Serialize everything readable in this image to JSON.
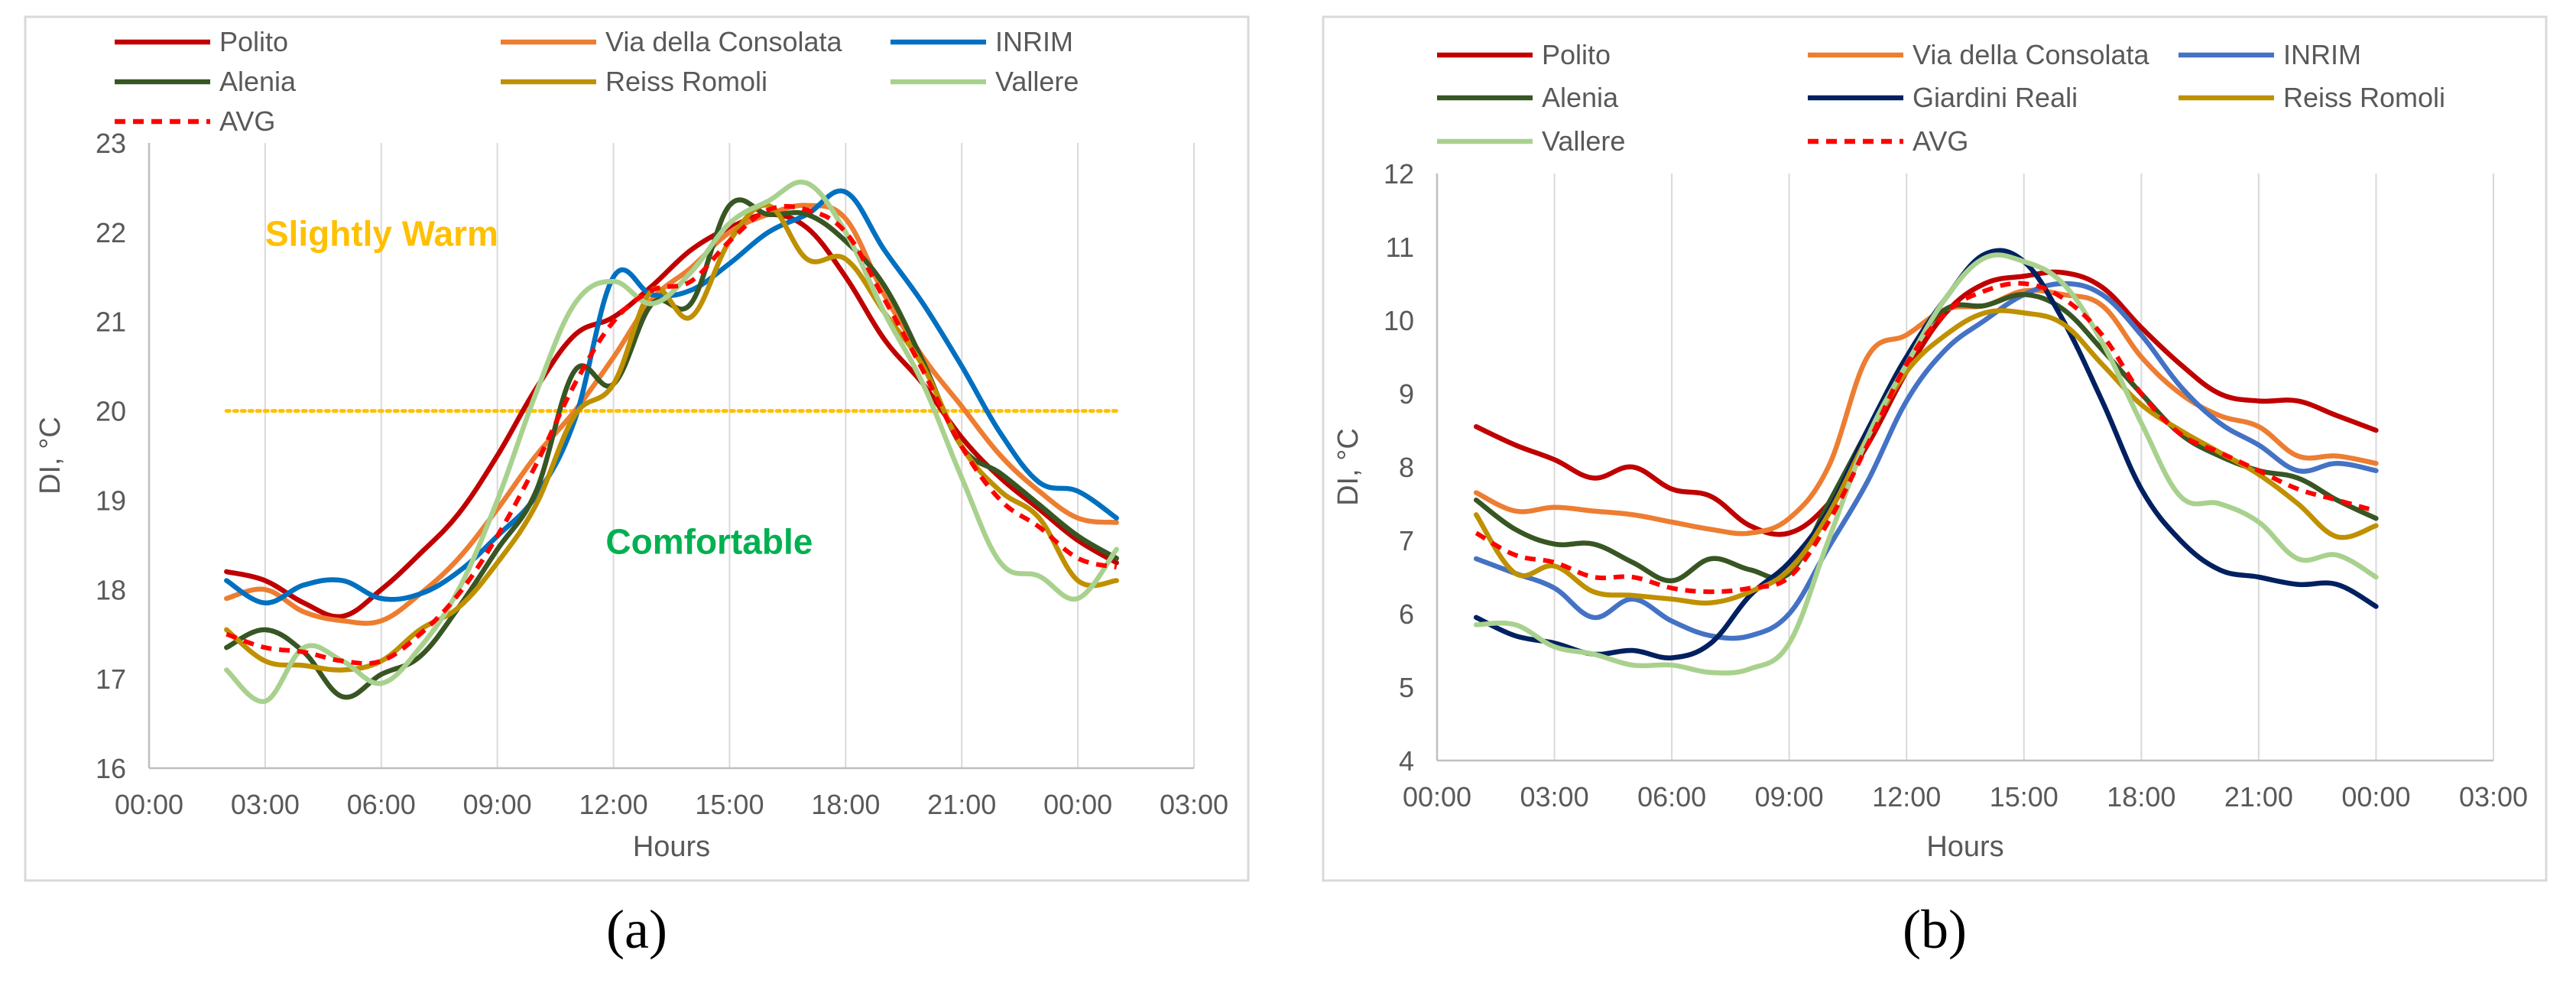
{
  "figure": {
    "label_a": "(a)",
    "label_b": "(b)"
  },
  "chart_data": [
    {
      "type": "line",
      "panel": "a",
      "title": "",
      "xlabel": "Hours",
      "ylabel": "DI, °C",
      "xlim": [
        0,
        27
      ],
      "ylim": [
        16,
        23
      ],
      "x_ticks": [
        0,
        3,
        6,
        9,
        12,
        15,
        18,
        21,
        24,
        27
      ],
      "x_tick_labels": [
        "00:00",
        "03:00",
        "06:00",
        "09:00",
        "12:00",
        "15:00",
        "18:00",
        "21:00",
        "00:00",
        "03:00"
      ],
      "y_ticks": [
        16,
        17,
        18,
        19,
        20,
        21,
        22,
        23
      ],
      "y_tick_labels": [
        "16",
        "17",
        "18",
        "19",
        "20",
        "21",
        "22",
        "23"
      ],
      "grid": "vertical",
      "legend_position": "top",
      "annotations": [
        {
          "text": "Slightly Warm",
          "x": 3,
          "y": 21.85,
          "color": "#ffc000"
        },
        {
          "text": "Comfortable",
          "x": 11.8,
          "y": 18.4,
          "color": "#00b050"
        }
      ],
      "threshold": {
        "y": 20,
        "x_range": [
          2,
          25
        ],
        "color": "#ffc000"
      },
      "series": [
        {
          "name": "Polito",
          "color": "#c00000",
          "dash": false,
          "legend_col": 0,
          "legend_row": 0,
          "x": [
            2,
            3,
            4,
            5,
            6,
            7,
            8,
            9,
            10,
            11,
            12,
            13,
            14,
            15,
            16,
            17,
            18,
            19,
            20,
            21,
            22,
            23,
            24,
            25
          ],
          "y": [
            18.2,
            18.1,
            17.85,
            17.7,
            18.0,
            18.4,
            18.85,
            19.5,
            20.25,
            20.85,
            21.05,
            21.4,
            21.8,
            22.05,
            22.2,
            22.05,
            21.5,
            20.8,
            20.3,
            19.7,
            19.25,
            18.9,
            18.55,
            18.3
          ]
        },
        {
          "name": "Via della Consolata",
          "color": "#ed7d31",
          "dash": false,
          "legend_col": 1,
          "legend_row": 0,
          "x": [
            2,
            3,
            4,
            5,
            6,
            7,
            8,
            9,
            10,
            11,
            12,
            13,
            14,
            15,
            16,
            17,
            18,
            19,
            20,
            21,
            22,
            23,
            24,
            25
          ],
          "y": [
            17.9,
            18.0,
            17.75,
            17.65,
            17.65,
            17.95,
            18.35,
            18.9,
            19.5,
            20.0,
            20.6,
            21.25,
            21.6,
            22.0,
            22.2,
            22.3,
            22.15,
            21.3,
            20.6,
            20.05,
            19.5,
            19.1,
            18.8,
            18.75
          ]
        },
        {
          "name": "INRIM",
          "color": "#0070c0",
          "dash": false,
          "legend_col": 2,
          "legend_row": 0,
          "x": [
            2,
            3,
            4,
            5,
            6,
            7,
            8,
            9,
            10,
            11,
            12,
            13,
            14,
            15,
            16,
            17,
            18,
            19,
            20,
            21,
            22,
            23,
            24,
            25
          ],
          "y": [
            18.1,
            17.85,
            18.05,
            18.1,
            17.9,
            17.95,
            18.2,
            18.6,
            19.05,
            19.9,
            21.5,
            21.3,
            21.35,
            21.65,
            22.0,
            22.2,
            22.45,
            21.8,
            21.2,
            20.5,
            19.75,
            19.2,
            19.1,
            18.8
          ]
        },
        {
          "name": "Alenia",
          "color": "#375623",
          "dash": false,
          "legend_col": 0,
          "legend_row": 1,
          "x": [
            2,
            3,
            4,
            5,
            6,
            7,
            8,
            9,
            10,
            11,
            12,
            13,
            14,
            15,
            16,
            17,
            18,
            19,
            20,
            21,
            22,
            23,
            24,
            25
          ],
          "y": [
            17.35,
            17.55,
            17.3,
            16.8,
            17.05,
            17.25,
            17.8,
            18.45,
            19.1,
            20.45,
            20.3,
            21.2,
            21.2,
            22.3,
            22.2,
            22.2,
            21.9,
            21.4,
            20.55,
            19.6,
            19.3,
            18.95,
            18.6,
            18.35
          ]
        },
        {
          "name": "Reiss Romoli",
          "color": "#bf9000",
          "dash": false,
          "legend_col": 1,
          "legend_row": 1,
          "x": [
            2,
            3,
            4,
            5,
            6,
            7,
            8,
            9,
            10,
            11,
            12,
            13,
            14,
            15,
            16,
            17,
            18,
            19,
            20,
            21,
            22,
            23,
            24,
            25
          ],
          "y": [
            17.55,
            17.2,
            17.15,
            17.1,
            17.2,
            17.55,
            17.8,
            18.3,
            18.95,
            19.95,
            20.3,
            21.35,
            21.05,
            21.9,
            22.3,
            21.7,
            21.7,
            21.1,
            20.5,
            19.6,
            19.1,
            18.8,
            18.1,
            18.1
          ]
        },
        {
          "name": "Vallere",
          "color": "#a9d18e",
          "dash": false,
          "legend_col": 2,
          "legend_row": 1,
          "x": [
            2,
            3,
            4,
            5,
            6,
            7,
            8,
            9,
            10,
            11,
            12,
            13,
            14,
            15,
            16,
            17,
            18,
            19,
            20,
            21,
            22,
            23,
            24,
            25
          ],
          "y": [
            17.1,
            16.75,
            17.35,
            17.2,
            16.95,
            17.35,
            18.0,
            19.0,
            20.2,
            21.2,
            21.45,
            21.2,
            21.55,
            22.1,
            22.35,
            22.55,
            22.0,
            21.1,
            20.3,
            19.25,
            18.3,
            18.15,
            17.9,
            18.45
          ]
        },
        {
          "name": "AVG",
          "color": "#ff0000",
          "dash": true,
          "legend_col": 0,
          "legend_row": 2,
          "x": [
            2,
            3,
            4,
            5,
            6,
            7,
            8,
            9,
            10,
            11,
            12,
            13,
            14,
            15,
            16,
            17,
            18,
            19,
            20,
            21,
            22,
            23,
            24,
            25
          ],
          "y": [
            17.5,
            17.35,
            17.3,
            17.2,
            17.2,
            17.5,
            17.95,
            18.6,
            19.4,
            20.3,
            21.0,
            21.35,
            21.45,
            21.9,
            22.25,
            22.25,
            22.0,
            21.25,
            20.45,
            19.6,
            19.0,
            18.7,
            18.35,
            18.25
          ]
        }
      ]
    },
    {
      "type": "line",
      "panel": "b",
      "title": "",
      "xlabel": "Hours",
      "ylabel": "DI, °C",
      "xlim": [
        0,
        27
      ],
      "ylim": [
        4,
        12
      ],
      "x_ticks": [
        0,
        3,
        6,
        9,
        12,
        15,
        18,
        21,
        24,
        27
      ],
      "x_tick_labels": [
        "00:00",
        "03:00",
        "06:00",
        "09:00",
        "12:00",
        "15:00",
        "18:00",
        "21:00",
        "00:00",
        "03:00"
      ],
      "y_ticks": [
        4,
        5,
        6,
        7,
        8,
        9,
        10,
        11,
        12
      ],
      "y_tick_labels": [
        "4",
        "5",
        "6",
        "7",
        "8",
        "9",
        "10",
        "11",
        "12"
      ],
      "grid": "vertical",
      "legend_position": "top",
      "series": [
        {
          "name": "Polito",
          "color": "#c00000",
          "dash": false,
          "legend_col": 0,
          "legend_row": 0,
          "x": [
            1,
            2,
            3,
            4,
            5,
            6,
            7,
            8,
            9,
            10,
            11,
            12,
            13,
            14,
            15,
            16,
            17,
            18,
            19,
            20,
            21,
            22,
            23,
            24
          ],
          "y": [
            8.55,
            8.3,
            8.1,
            7.85,
            8.0,
            7.7,
            7.6,
            7.2,
            7.1,
            7.5,
            8.3,
            9.3,
            10.1,
            10.5,
            10.6,
            10.65,
            10.45,
            9.9,
            9.4,
            9.0,
            8.9,
            8.9,
            8.7,
            8.5
          ]
        },
        {
          "name": "Via della Consolata",
          "color": "#ed7d31",
          "dash": false,
          "legend_col": 1,
          "legend_row": 0,
          "x": [
            1,
            2,
            3,
            4,
            5,
            6,
            7,
            8,
            9,
            10,
            11,
            12,
            13,
            14,
            15,
            16,
            17,
            18,
            19,
            20,
            21,
            22,
            23,
            24
          ],
          "y": [
            7.65,
            7.4,
            7.45,
            7.4,
            7.35,
            7.25,
            7.15,
            7.1,
            7.3,
            8.0,
            9.5,
            9.8,
            10.15,
            10.2,
            10.4,
            10.35,
            10.2,
            9.5,
            9.0,
            8.7,
            8.55,
            8.15,
            8.15,
            8.05
          ]
        },
        {
          "name": "INRIM",
          "color": "#4472c4",
          "dash": false,
          "legend_col": 2,
          "legend_row": 0,
          "x": [
            1,
            2,
            3,
            4,
            5,
            6,
            7,
            8,
            9,
            10,
            11,
            12,
            13,
            14,
            15,
            16,
            17,
            18,
            19,
            20,
            21,
            22,
            23,
            24
          ],
          "y": [
            6.75,
            6.55,
            6.35,
            5.95,
            6.2,
            5.9,
            5.7,
            5.7,
            6.0,
            6.9,
            7.8,
            8.9,
            9.6,
            10.0,
            10.35,
            10.5,
            10.35,
            9.8,
            9.1,
            8.6,
            8.3,
            7.95,
            8.05,
            7.95
          ]
        },
        {
          "name": "Alenia",
          "color": "#375623",
          "dash": false,
          "legend_col": 0,
          "legend_row": 1,
          "x": [
            1,
            2,
            3,
            4,
            5,
            6,
            7,
            8,
            9,
            10,
            11,
            12,
            13,
            14,
            15,
            16,
            17,
            18,
            19,
            20,
            21,
            22,
            23,
            24
          ],
          "y": [
            7.55,
            7.15,
            6.95,
            6.95,
            6.7,
            6.45,
            6.75,
            6.6,
            6.55,
            7.5,
            8.5,
            9.5,
            10.15,
            10.2,
            10.35,
            10.15,
            9.6,
            9.0,
            8.45,
            8.15,
            7.95,
            7.85,
            7.55,
            7.3
          ]
        },
        {
          "name": "Giardini Reali",
          "color": "#002060",
          "dash": false,
          "legend_col": 1,
          "legend_row": 1,
          "x": [
            1,
            2,
            3,
            4,
            5,
            6,
            7,
            8,
            9,
            10,
            11,
            12,
            13,
            14,
            15,
            16,
            17,
            18,
            19,
            20,
            21,
            22,
            23,
            24
          ],
          "y": [
            5.95,
            5.7,
            5.6,
            5.45,
            5.5,
            5.4,
            5.6,
            6.25,
            6.7,
            7.4,
            8.5,
            9.5,
            10.3,
            10.9,
            10.8,
            10.0,
            8.9,
            7.7,
            7.0,
            6.6,
            6.5,
            6.4,
            6.4,
            6.1
          ]
        },
        {
          "name": "Reiss Romoli",
          "color": "#bf9000",
          "dash": false,
          "legend_col": 2,
          "legend_row": 1,
          "x": [
            1,
            2,
            3,
            4,
            5,
            6,
            7,
            8,
            9,
            10,
            11,
            12,
            13,
            14,
            15,
            16,
            17,
            18,
            19,
            20,
            21,
            22,
            23,
            24
          ],
          "y": [
            7.35,
            6.55,
            6.65,
            6.3,
            6.25,
            6.2,
            6.15,
            6.3,
            6.6,
            7.35,
            8.4,
            9.3,
            9.8,
            10.1,
            10.1,
            9.95,
            9.4,
            8.85,
            8.5,
            8.2,
            7.9,
            7.5,
            7.05,
            7.2
          ]
        },
        {
          "name": "Vallere",
          "color": "#a9d18e",
          "dash": false,
          "legend_col": 0,
          "legend_row": 2,
          "x": [
            1,
            2,
            3,
            4,
            5,
            6,
            7,
            8,
            9,
            10,
            11,
            12,
            13,
            14,
            15,
            16,
            17,
            18,
            19,
            20,
            21,
            22,
            23,
            24
          ],
          "y": [
            5.85,
            5.85,
            5.55,
            5.45,
            5.3,
            5.3,
            5.2,
            5.25,
            5.6,
            7.0,
            8.4,
            9.4,
            10.3,
            10.85,
            10.8,
            10.5,
            9.7,
            8.6,
            7.6,
            7.5,
            7.25,
            6.75,
            6.8,
            6.5
          ]
        },
        {
          "name": "AVG",
          "color": "#ff0000",
          "dash": true,
          "legend_col": 1,
          "legend_row": 2,
          "x": [
            1,
            2,
            3,
            4,
            5,
            6,
            7,
            8,
            9,
            10,
            11,
            12,
            13,
            14,
            15,
            16,
            17,
            18,
            19,
            20,
            21,
            22,
            23,
            24
          ],
          "y": [
            7.1,
            6.8,
            6.7,
            6.5,
            6.5,
            6.35,
            6.3,
            6.35,
            6.5,
            7.25,
            8.3,
            9.4,
            10.1,
            10.4,
            10.5,
            10.3,
            9.8,
            9.0,
            8.45,
            8.2,
            7.95,
            7.7,
            7.55,
            7.4
          ]
        }
      ]
    }
  ]
}
